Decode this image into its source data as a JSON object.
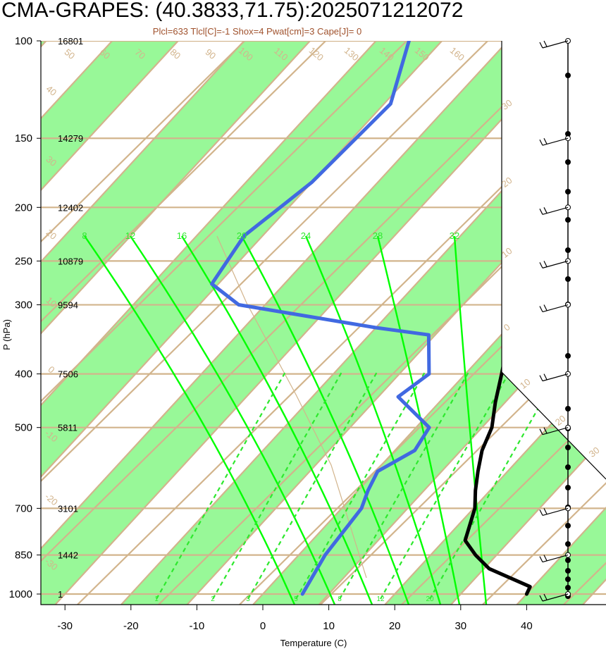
{
  "chart_data": {
    "type": "line",
    "title": "CMA-GRAPES: (40.3833,71.75):2025071212072",
    "subtitle": "Plcl=633 Tlcl[C]=-1 Shox=4 Pwat[cm]=3 Cape[J]= 0",
    "xlabel": "Temperature (C)",
    "ylabel": "P (hPa)",
    "xlim": [
      -34,
      41
    ],
    "x_ticks": [
      "-30",
      "-20",
      "-10",
      "0",
      "10",
      "20",
      "30",
      "40"
    ],
    "y_scale": "log",
    "y_ticks": [
      "100",
      "150",
      "200",
      "250",
      "300",
      "400",
      "500",
      "700",
      "850",
      "1000"
    ],
    "heights": [
      {
        "p": 100,
        "h": "16801"
      },
      {
        "p": 150,
        "h": "14279"
      },
      {
        "p": 200,
        "h": "12402"
      },
      {
        "p": 250,
        "h": "10879"
      },
      {
        "p": 300,
        "h": "9594"
      },
      {
        "p": 400,
        "h": "7506"
      },
      {
        "p": 500,
        "h": "5811"
      },
      {
        "p": 700,
        "h": "3101"
      },
      {
        "p": 850,
        "h": "1442"
      },
      {
        "p": 1000,
        "h": "1"
      }
    ],
    "series": [
      {
        "name": "",
        "color": "#000000",
        "points": [
          [
            1000,
            40
          ],
          [
            970,
            39.5
          ],
          [
            900,
            30.8
          ],
          [
            850,
            26.8
          ],
          [
            800,
            23.2
          ],
          [
            700,
            20.2
          ],
          [
            650,
            17.8
          ],
          [
            600,
            15.5
          ],
          [
            550,
            13.2
          ],
          [
            500,
            11.5
          ],
          [
            450,
            8.5
          ],
          [
            400,
            5.5
          ],
          [
            350,
            2.0
          ],
          [
            300,
            -3.0
          ],
          [
            250,
            -9.2
          ],
          [
            200,
            -16.0
          ],
          [
            150,
            -25.5
          ],
          [
            100,
            -34.0
          ]
        ]
      },
      {
        "name": "",
        "color": "#4169e1",
        "points": [
          [
            1000,
            6
          ],
          [
            850,
            4.0
          ],
          [
            700,
            3.0
          ],
          [
            650,
            1.5
          ],
          [
            600,
            0.3
          ],
          [
            550,
            3.0
          ],
          [
            500,
            2.0
          ],
          [
            440,
            -7.0
          ],
          [
            400,
            -5.5
          ],
          [
            340,
            -11.0
          ],
          [
            330,
            -20.0
          ],
          [
            300,
            -44.0
          ],
          [
            275,
            -51.0
          ],
          [
            225,
            -52.8
          ],
          [
            200,
            -51.3
          ],
          [
            180,
            -50.0
          ],
          [
            130,
            -49.0
          ],
          [
            100,
            -55.0
          ]
        ]
      }
    ],
    "mixing_ratio_labels": [
      "1",
      "2",
      "3",
      "5",
      "8",
      "12",
      "20"
    ],
    "dry_adiabat_labels": [
      "50",
      "60",
      "70",
      "80",
      "90",
      "100",
      "110",
      "120",
      "130",
      "140",
      "150",
      "160"
    ],
    "moist_adiabat_labels": [
      "8",
      "12",
      "16",
      "20",
      "24",
      "28",
      "32"
    ],
    "right_labels": [
      "30",
      "20",
      "10",
      "0",
      "10",
      "20",
      "30"
    ],
    "left_labels": [
      "40",
      "30",
      "20",
      "10",
      "0",
      "-10",
      "-20",
      "-30"
    ],
    "wind_levels": [
      100,
      150,
      200,
      250,
      300,
      400,
      500,
      700,
      850,
      1000
    ],
    "colors": {
      "band": "#98f898",
      "isotherm": "#d2b48c",
      "moist": "#00ff00",
      "frame": "#000000"
    }
  }
}
